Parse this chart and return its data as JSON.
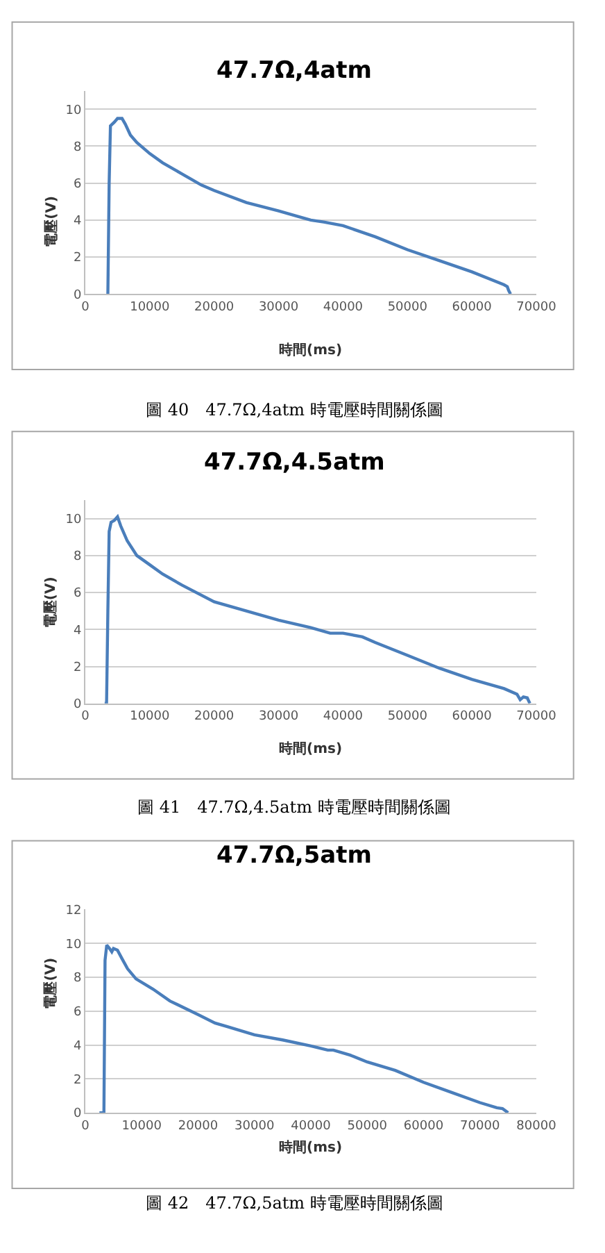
{
  "chart_data": [
    {
      "type": "line",
      "title": "47.7Ω,4atm",
      "xlabel": "時間(ms)",
      "ylabel": "電壓(V)",
      "annotations": [
        "圖 40　47.7Ω,4atm 時電壓時間關係圖"
      ],
      "color": "#4a7ebb",
      "grid": "y",
      "x": [
        3500,
        3700,
        3900,
        4500,
        5000,
        5700,
        6200,
        7000,
        8000,
        10000,
        12000,
        15000,
        18000,
        20000,
        25000,
        30000,
        33000,
        35000,
        37000,
        40000,
        45000,
        50000,
        55000,
        60000,
        65000,
        65500,
        65700,
        66000
      ],
      "values": [
        0,
        6,
        9.1,
        9.3,
        9.5,
        9.5,
        9.2,
        8.6,
        8.2,
        7.6,
        7.1,
        6.5,
        5.9,
        5.6,
        4.95,
        4.5,
        4.2,
        4.0,
        3.9,
        3.7,
        3.1,
        2.4,
        1.8,
        1.2,
        0.5,
        0.4,
        0.2,
        0
      ],
      "xlim": [
        0,
        70000
      ],
      "xticks": [
        0,
        10000,
        20000,
        30000,
        40000,
        50000,
        60000,
        70000
      ],
      "ylim": [
        0,
        11
      ],
      "yticks": [
        0,
        2,
        4,
        6,
        8,
        10
      ]
    },
    {
      "type": "line",
      "title": "47.7Ω,4.5atm",
      "xlabel": "時間(ms)",
      "ylabel": "電壓(V)",
      "annotations": [
        "圖 41　47.7Ω,4.5atm 時電壓時間關係圖"
      ],
      "color": "#4a7ebb",
      "grid": "y",
      "x": [
        3000,
        3300,
        3500,
        3700,
        4000,
        4500,
        5000,
        5500,
        6500,
        8000,
        10000,
        12000,
        15000,
        20000,
        25000,
        30000,
        35000,
        38000,
        40000,
        43000,
        45000,
        50000,
        55000,
        60000,
        65000,
        67000,
        67500,
        68000,
        68600,
        69000
      ],
      "values": [
        0,
        0,
        5,
        9.3,
        9.8,
        9.9,
        10.1,
        9.6,
        8.8,
        8.0,
        7.5,
        7.0,
        6.4,
        5.5,
        5.0,
        4.5,
        4.1,
        3.8,
        3.8,
        3.6,
        3.3,
        2.6,
        1.9,
        1.3,
        0.8,
        0.5,
        0.2,
        0.35,
        0.3,
        0
      ],
      "xlim": [
        0,
        70000
      ],
      "xticks": [
        0,
        10000,
        20000,
        30000,
        40000,
        50000,
        60000,
        70000
      ],
      "ylim": [
        0,
        11
      ],
      "yticks": [
        0,
        2,
        4,
        6,
        8,
        10
      ]
    },
    {
      "type": "line",
      "title": "47.7Ω,5atm",
      "xlabel": "時間(ms)",
      "ylabel": "電壓(V)",
      "annotations": [
        "圖 42　47.7Ω,5atm 時電壓時間關係圖"
      ],
      "color": "#4a7ebb",
      "grid": "y",
      "x": [
        2500,
        3300,
        3500,
        3800,
        4300,
        4700,
        5000,
        5700,
        6500,
        7500,
        9000,
        12000,
        15000,
        20000,
        23000,
        25000,
        30000,
        35000,
        40000,
        43000,
        44000,
        47000,
        50000,
        55000,
        60000,
        65000,
        70000,
        73000,
        74000,
        75000
      ],
      "values": [
        0,
        0,
        9,
        9.9,
        9.7,
        9.5,
        9.7,
        9.6,
        9.1,
        8.5,
        7.9,
        7.3,
        6.6,
        5.8,
        5.3,
        5.1,
        4.6,
        4.3,
        3.95,
        3.7,
        3.7,
        3.4,
        3.0,
        2.5,
        1.8,
        1.2,
        0.6,
        0.3,
        0.25,
        0
      ],
      "xlim": [
        0,
        80000
      ],
      "xticks": [
        0,
        10000,
        20000,
        30000,
        40000,
        50000,
        60000,
        70000,
        80000
      ],
      "ylim": [
        0,
        12
      ],
      "yticks": [
        0,
        2,
        4,
        6,
        8,
        10,
        12
      ]
    }
  ]
}
